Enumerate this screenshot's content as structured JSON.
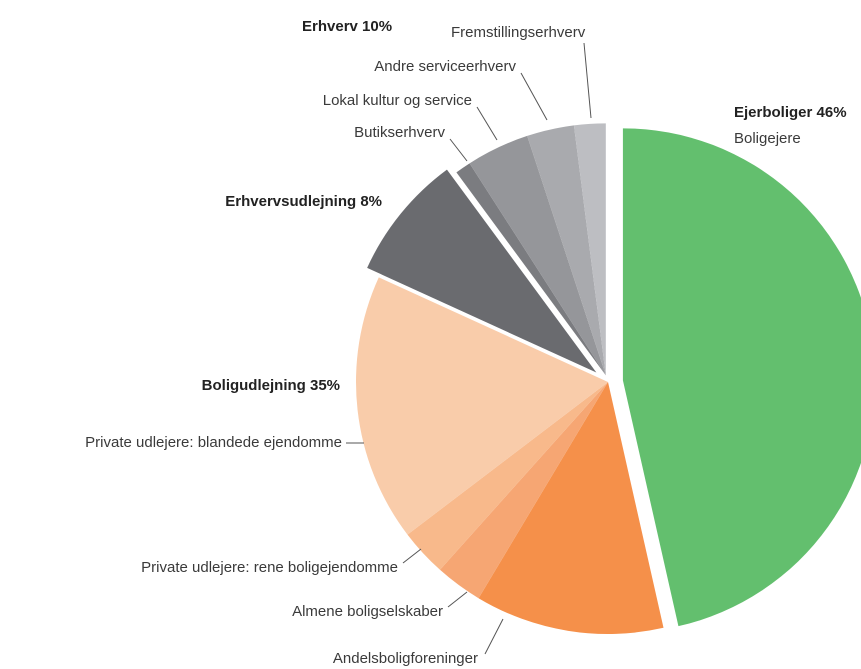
{
  "chart_data": {
    "type": "pie",
    "groups": [
      {
        "label": "Ejerboliger 46%",
        "slices": [
          {
            "name": "Boligejere",
            "value": 46,
            "color": "#63bf6e"
          }
        ]
      },
      {
        "label": "Boligudlejning 35%",
        "slices": [
          {
            "name": "Andelsboligforeninger",
            "value": 12,
            "color": "#f5904a"
          },
          {
            "name": "Almene boligselskaber",
            "value": 3,
            "color": "#f6a673"
          },
          {
            "name": "Private udlejere: rene boligejendomme",
            "value": 3,
            "color": "#f8b98b"
          },
          {
            "name": "Private udlejere: blandede ejendomme",
            "value": 17,
            "color": "#f9ccaa"
          }
        ]
      },
      {
        "label": "Erhvervsudlejning 8%",
        "slices": [
          {
            "value": 8,
            "color": "#6a6b6f"
          }
        ]
      },
      {
        "label": "Erhverv 10%",
        "slices": [
          {
            "name": "Butikserhverv",
            "value": 1,
            "color": "#7b7c80"
          },
          {
            "name": "Lokal kultur og service",
            "value": 4,
            "color": "#95969a"
          },
          {
            "name": "Andre serviceerhverv",
            "value": 3,
            "color": "#a9aaae"
          },
          {
            "name": "Fremstillingserhverv",
            "value": 2,
            "color": "#bdbec2"
          }
        ]
      }
    ]
  }
}
